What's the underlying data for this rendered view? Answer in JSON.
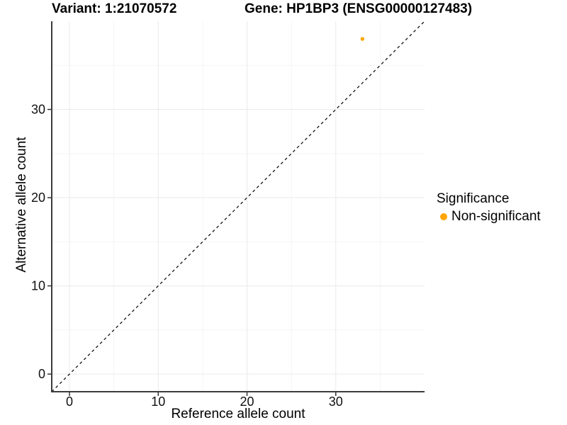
{
  "background_color": "#ffffff",
  "chart_data": {
    "type": "scatter",
    "title_left": "Variant: 1:21070572",
    "title_right": "Gene: HP1BP3 (ENSG00000127483)",
    "xlabel": "Reference allele count",
    "ylabel": "Alternative allele count",
    "xlim": [
      -2,
      40
    ],
    "ylim": [
      -2,
      40
    ],
    "x_ticks": [
      0,
      10,
      20,
      30
    ],
    "y_ticks": [
      0,
      10,
      20,
      30
    ],
    "x_minor_ticks": [
      5,
      15,
      25,
      35
    ],
    "y_minor_ticks": [
      5,
      15,
      25,
      35
    ],
    "grid": "major+minor, light gray on white",
    "identity_line": {
      "style": "dashed",
      "slope": 1,
      "intercept": 0,
      "color": "#111111"
    },
    "series": [
      {
        "name": "Non-significant",
        "color": "#FFA500",
        "points": [
          {
            "x": 33,
            "y": 38
          }
        ]
      }
    ],
    "legend": {
      "title": "Significance",
      "position": "right",
      "items": [
        {
          "label": "Non-significant",
          "color": "#FFA500",
          "marker": "circle"
        }
      ]
    },
    "style": {
      "axis_line_color": "#3c3c3c",
      "tick_color": "#333333",
      "tick_label_color": "#111111",
      "major_grid_color": "#eaeaea",
      "minor_grid_color": "#f5f5f5",
      "point_radius_px": 2.7
    }
  }
}
